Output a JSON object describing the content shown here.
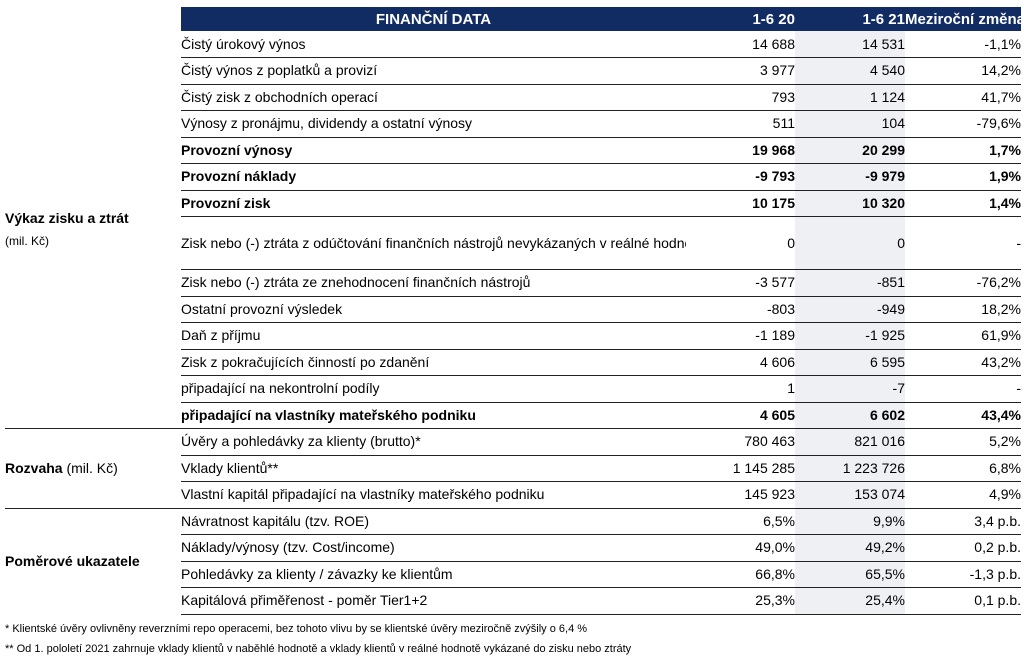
{
  "header": {
    "title": "FINANČNÍ DATA",
    "col_2020": "1-6 20",
    "col_2021": "1-6 21",
    "col_change": "Meziroční změna"
  },
  "sections": [
    {
      "name": "Výkaz zisku a ztrát",
      "subtitle": "(mil. Kč)",
      "rows": [
        {
          "label": "Čistý úrokový výnos",
          "v2020": "14 688",
          "v2021": "14 531",
          "change": "-1,1%"
        },
        {
          "label": "Čistý výnos z poplatků a provizí",
          "v2020": "3 977",
          "v2021": "4 540",
          "change": "14,2%"
        },
        {
          "label": "Čistý zisk z obchodních operací",
          "v2020": "793",
          "v2021": "1 124",
          "change": "41,7%"
        },
        {
          "label": "Výnosy z pronájmu, dividendy a ostatní výnosy",
          "v2020": "511",
          "v2021": "104",
          "change": "-79,6%"
        },
        {
          "label": "Provozní výnosy",
          "v2020": "19 968",
          "v2021": "20 299",
          "change": "1,7%"
        },
        {
          "label": "Provozní náklady",
          "v2020": "-9 793",
          "v2021": "-9 979",
          "change": "1,9%"
        },
        {
          "label": "Provozní zisk",
          "v2020": "10 175",
          "v2021": "10 320",
          "change": "1,4%"
        },
        {
          "label": "Zisk nebo (-) ztráta z odúčtování finančních nástrojů nevykázaných v reálné hodnotě do zisku nebo ztráty",
          "v2020": "0",
          "v2021": "0",
          "change": "-"
        },
        {
          "label": "Zisk nebo (-) ztráta ze znehodnocení finančních nástrojů",
          "v2020": "-3 577",
          "v2021": "-851",
          "change": "-76,2%"
        },
        {
          "label": "Ostatní provozní výsledek",
          "v2020": "-803",
          "v2021": "-949",
          "change": "18,2%"
        },
        {
          "label": "Daň z příjmu",
          "v2020": "-1 189",
          "v2021": "-1 925",
          "change": "61,9%"
        },
        {
          "label": "Zisk z pokračujících činností po zdanění",
          "v2020": "4 606",
          "v2021": "6 595",
          "change": "43,2%"
        },
        {
          "label": "připadající na nekontrolní podíly",
          "v2020": "1",
          "v2021": "-7",
          "change": "-"
        },
        {
          "label": "připadající na vlastníky mateřského podniku",
          "v2020": "4 605",
          "v2021": "6 602",
          "change": "43,4%"
        }
      ]
    },
    {
      "name": "Rozvaha",
      "subtitle": "(mil. Kč)",
      "rows": [
        {
          "label": "Úvěry a pohledávky za klienty (brutto)*",
          "v2020": "780 463",
          "v2021": "821 016",
          "change": "5,2%"
        },
        {
          "label": "Vklady klientů**",
          "v2020": "1 145 285",
          "v2021": "1 223 726",
          "change": "6,8%"
        },
        {
          "label": "Vlastní kapitál připadající na vlastníky mateřského podniku",
          "v2020": "145 923",
          "v2021": "153 074",
          "change": "4,9%"
        }
      ]
    },
    {
      "name": "Poměrové ukazatele",
      "subtitle": "",
      "rows": [
        {
          "label": "Návratnost kapitálu (tzv. ROE)",
          "v2020": "6,5%",
          "v2021": "9,9%",
          "change": "3,4 p.b."
        },
        {
          "label": "Náklady/výnosy (tzv. Cost/income)",
          "v2020": "49,0%",
          "v2021": "49,2%",
          "change": "0,2 p.b."
        },
        {
          "label": "Pohledávky za klienty / závazky ke klientům",
          "v2020": "66,8%",
          "v2021": "65,5%",
          "change": "-1,3 p.b."
        },
        {
          "label": "Kapitálová přiměřenost - poměr Tier1+2",
          "v2020": "25,3%",
          "v2021": "25,4%",
          "change": "0,1 p.b."
        }
      ]
    }
  ],
  "footnotes": [
    "* Klientské úvěry ovlivněny reverzními repo operacemi, bez tohoto vlivu by se klientské úvěry meziročně zvýšily o 6,4 %",
    "** Od 1. pololetí 2021 zahrnuje vklady klientů v naběhlé hodnotě a vklady klientů v reálné hodnotě vykázané do zisku nebo ztráty"
  ]
}
